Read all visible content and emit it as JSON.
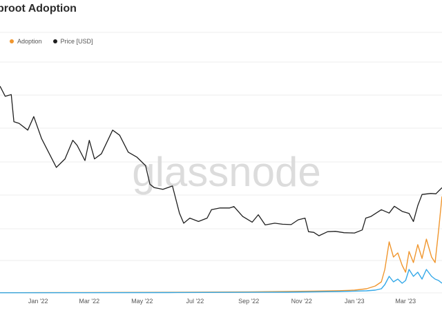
{
  "page": {
    "title": "Taproot Adoption",
    "visible_title": "proot Adoption"
  },
  "colors": {
    "adoption": "#f0962e",
    "adoption_secondary": "#33a8e8",
    "price": "#1f1f1f",
    "grid": "#ececec",
    "watermark": "#dcdcdc"
  },
  "watermark": "glassnode",
  "chart_data": {
    "type": "line",
    "title": "proot Adoption",
    "x_axis": {
      "type": "date",
      "range": [
        "2021-11-18",
        "2023-04-12"
      ],
      "tick_labels": [
        "Jan '22",
        "Mar '22",
        "May '22",
        "Jul '22",
        "Sep '22",
        "Nov '22",
        "Jan '23",
        "Mar '23"
      ],
      "tick_dates": [
        "2022-01-01",
        "2022-03-01",
        "2022-05-01",
        "2022-07-01",
        "2022-09-01",
        "2022-11-01",
        "2023-01-01",
        "2023-03-01"
      ]
    },
    "grid": true,
    "legend": {
      "position": "top-left",
      "entries": [
        "Adoption",
        "Price [USD]"
      ]
    },
    "series": [
      {
        "name": "Adoption",
        "key": "adoption",
        "axis": "adoption",
        "x": [
          "2021-11-18",
          "2022-01-01",
          "2022-03-01",
          "2022-05-01",
          "2022-07-01",
          "2022-09-01",
          "2022-10-15",
          "2022-11-15",
          "2022-12-15",
          "2023-01-01",
          "2023-01-15",
          "2023-01-25",
          "2023-02-01",
          "2023-02-05",
          "2023-02-10",
          "2023-02-15",
          "2023-02-20",
          "2023-02-25",
          "2023-03-01",
          "2023-03-05",
          "2023-03-10",
          "2023-03-15",
          "2023-03-20",
          "2023-03-25",
          "2023-03-31",
          "2023-04-04",
          "2023-04-08",
          "2023-04-12"
        ],
        "y": [
          0.2,
          0.4,
          0.6,
          0.8,
          1.0,
          1.4,
          2.0,
          2.6,
          3.2,
          4.0,
          6.0,
          10.0,
          16.0,
          34.0,
          74.0,
          52.0,
          58.0,
          40.0,
          30.0,
          60.0,
          44.0,
          70.0,
          50.0,
          78.0,
          52.0,
          44.0,
          90.0,
          140.0
        ]
      },
      {
        "name": "",
        "key": "adoption_secondary",
        "axis": "adoption",
        "x": [
          "2021-11-18",
          "2022-06-01",
          "2022-10-15",
          "2022-12-15",
          "2023-01-15",
          "2023-01-25",
          "2023-02-01",
          "2023-02-05",
          "2023-02-10",
          "2023-02-15",
          "2023-02-20",
          "2023-02-25",
          "2023-03-01",
          "2023-03-05",
          "2023-03-10",
          "2023-03-15",
          "2023-03-20",
          "2023-03-25",
          "2023-03-31",
          "2023-04-04",
          "2023-04-08",
          "2023-04-12"
        ],
        "y": [
          0.2,
          0.5,
          1.0,
          2.0,
          3.0,
          4.0,
          6.0,
          12.0,
          24.0,
          16.0,
          20.0,
          14.0,
          18.0,
          34.0,
          24.0,
          30.0,
          20.0,
          34.0,
          24.0,
          20.0,
          18.0,
          14.0
        ]
      },
      {
        "name": "Price [USD]",
        "key": "price",
        "axis": "price",
        "x": [
          "2021-11-18",
          "2021-11-24",
          "2021-12-01",
          "2021-12-04",
          "2021-12-10",
          "2021-12-20",
          "2021-12-27",
          "2022-01-05",
          "2022-01-10",
          "2022-01-22",
          "2022-02-01",
          "2022-02-10",
          "2022-02-15",
          "2022-02-24",
          "2022-03-01",
          "2022-03-07",
          "2022-03-15",
          "2022-03-28",
          "2022-04-05",
          "2022-04-15",
          "2022-04-25",
          "2022-05-05",
          "2022-05-10",
          "2022-05-15",
          "2022-05-25",
          "2022-06-05",
          "2022-06-13",
          "2022-06-18",
          "2022-06-25",
          "2022-07-05",
          "2022-07-15",
          "2022-07-20",
          "2022-07-30",
          "2022-08-10",
          "2022-08-15",
          "2022-08-25",
          "2022-09-05",
          "2022-09-12",
          "2022-09-20",
          "2022-10-01",
          "2022-10-10",
          "2022-10-20",
          "2022-10-28",
          "2022-11-05",
          "2022-11-09",
          "2022-11-15",
          "2022-11-21",
          "2022-12-01",
          "2022-12-10",
          "2022-12-20",
          "2023-01-01",
          "2023-01-10",
          "2023-01-14",
          "2023-01-20",
          "2023-02-01",
          "2023-02-10",
          "2023-02-16",
          "2023-02-25",
          "2023-03-05",
          "2023-03-10",
          "2023-03-15",
          "2023-03-20",
          "2023-03-30",
          "2023-04-05",
          "2023-04-12"
        ],
        "y": [
          60000,
          57000,
          57500,
          49500,
          49000,
          47000,
          51000,
          44500,
          42000,
          36000,
          38500,
          44000,
          42500,
          38000,
          44000,
          38500,
          40000,
          47000,
          45500,
          40500,
          39000,
          36500,
          31000,
          30000,
          29500,
          30500,
          22500,
          19500,
          21000,
          20000,
          21000,
          23500,
          24000,
          24000,
          24400,
          21500,
          19800,
          22000,
          19000,
          19500,
          19200,
          19100,
          20500,
          21000,
          17000,
          16800,
          15800,
          17000,
          17100,
          16700,
          16600,
          17500,
          21000,
          21500,
          23500,
          22500,
          24500,
          23000,
          22400,
          20000,
          24700,
          28000,
          28300,
          28200,
          30000
        ]
      }
    ]
  }
}
